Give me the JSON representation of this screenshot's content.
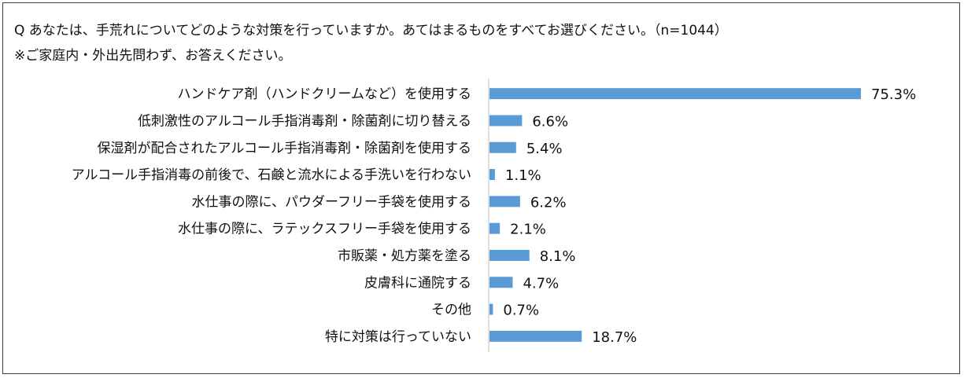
{
  "question": {
    "line1": "Q あなたは、手荒れについてどのような対策を行っていますか。あてはまるものをすべてお選びください。（n=1044）",
    "line2": "※ご家庭内・外出先問わず、お答えください。"
  },
  "chart_data": {
    "type": "bar",
    "orientation": "horizontal",
    "title": "Q あなたは、手荒れについてどのような対策を行っていますか。あてはまるものをすべてお選びください。（n=1044）",
    "subtitle": "※ご家庭内・外出先問わず、お答えください。",
    "xlim": [
      0,
      80
    ],
    "unit": "%",
    "bar_color": "#5b9bd5",
    "grid": false,
    "categories": [
      "ハンドケア剤（ハンドクリームなど）を使用する",
      "低刺激性のアルコール手指消毒剤・除菌剤に切り替える",
      "保湿剤が配合されたアルコール手指消毒剤・除菌剤を使用する",
      "アルコール手指消毒の前後で、石鹸と流水による手洗いを行わない",
      "水仕事の際に、パウダーフリー手袋を使用する",
      "水仕事の際に、ラテックスフリー手袋を使用する",
      "市販薬・処方薬を塗る",
      "皮膚科に通院する",
      "その他",
      "特に対策は行っていない"
    ],
    "values": [
      75.3,
      6.6,
      5.4,
      1.1,
      6.2,
      2.1,
      8.1,
      4.7,
      0.7,
      18.7
    ],
    "labels": [
      "75.3%",
      "6.6%",
      "5.4%",
      "1.1%",
      "6.2%",
      "2.1%",
      "8.1%",
      "4.7%",
      "0.7%",
      "18.7%"
    ]
  }
}
